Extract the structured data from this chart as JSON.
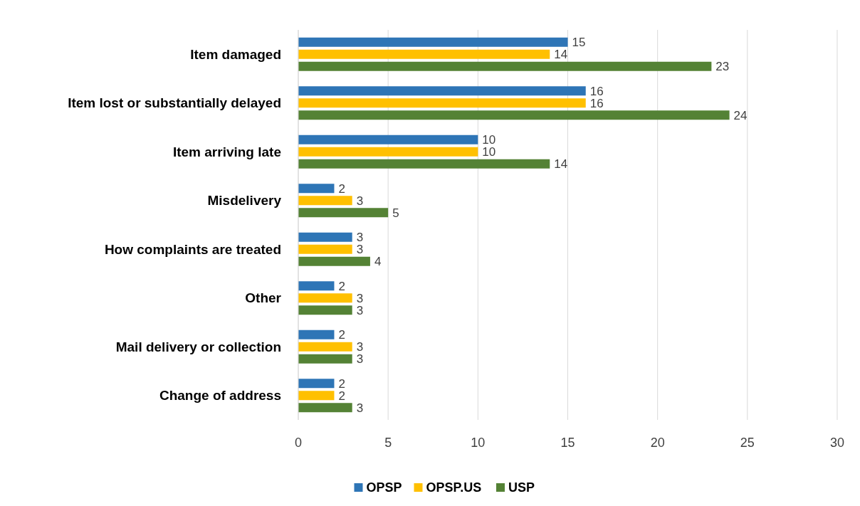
{
  "chart_data": {
    "type": "bar",
    "orientation": "horizontal",
    "categories": [
      "Item damaged",
      "Item lost or substantially delayed",
      "Item arriving late",
      "Misdelivery",
      "How complaints are treated",
      "Other",
      "Mail delivery or collection",
      "Change of address"
    ],
    "series": [
      {
        "name": "OPSP",
        "color": "#2e75b6",
        "values": [
          15,
          16,
          10,
          2,
          3,
          2,
          2,
          2
        ]
      },
      {
        "name": "OPSP.US",
        "color": "#ffc000",
        "values": [
          14,
          16,
          10,
          3,
          3,
          3,
          3,
          2
        ]
      },
      {
        "name": "USP",
        "color": "#548235",
        "values": [
          23,
          24,
          14,
          5,
          4,
          3,
          3,
          3
        ]
      }
    ],
    "xlim": [
      0,
      30
    ],
    "xticks": [
      0,
      5,
      10,
      15,
      20,
      25,
      30
    ],
    "grid": "x",
    "legend": "bottom",
    "data_labels": true
  }
}
